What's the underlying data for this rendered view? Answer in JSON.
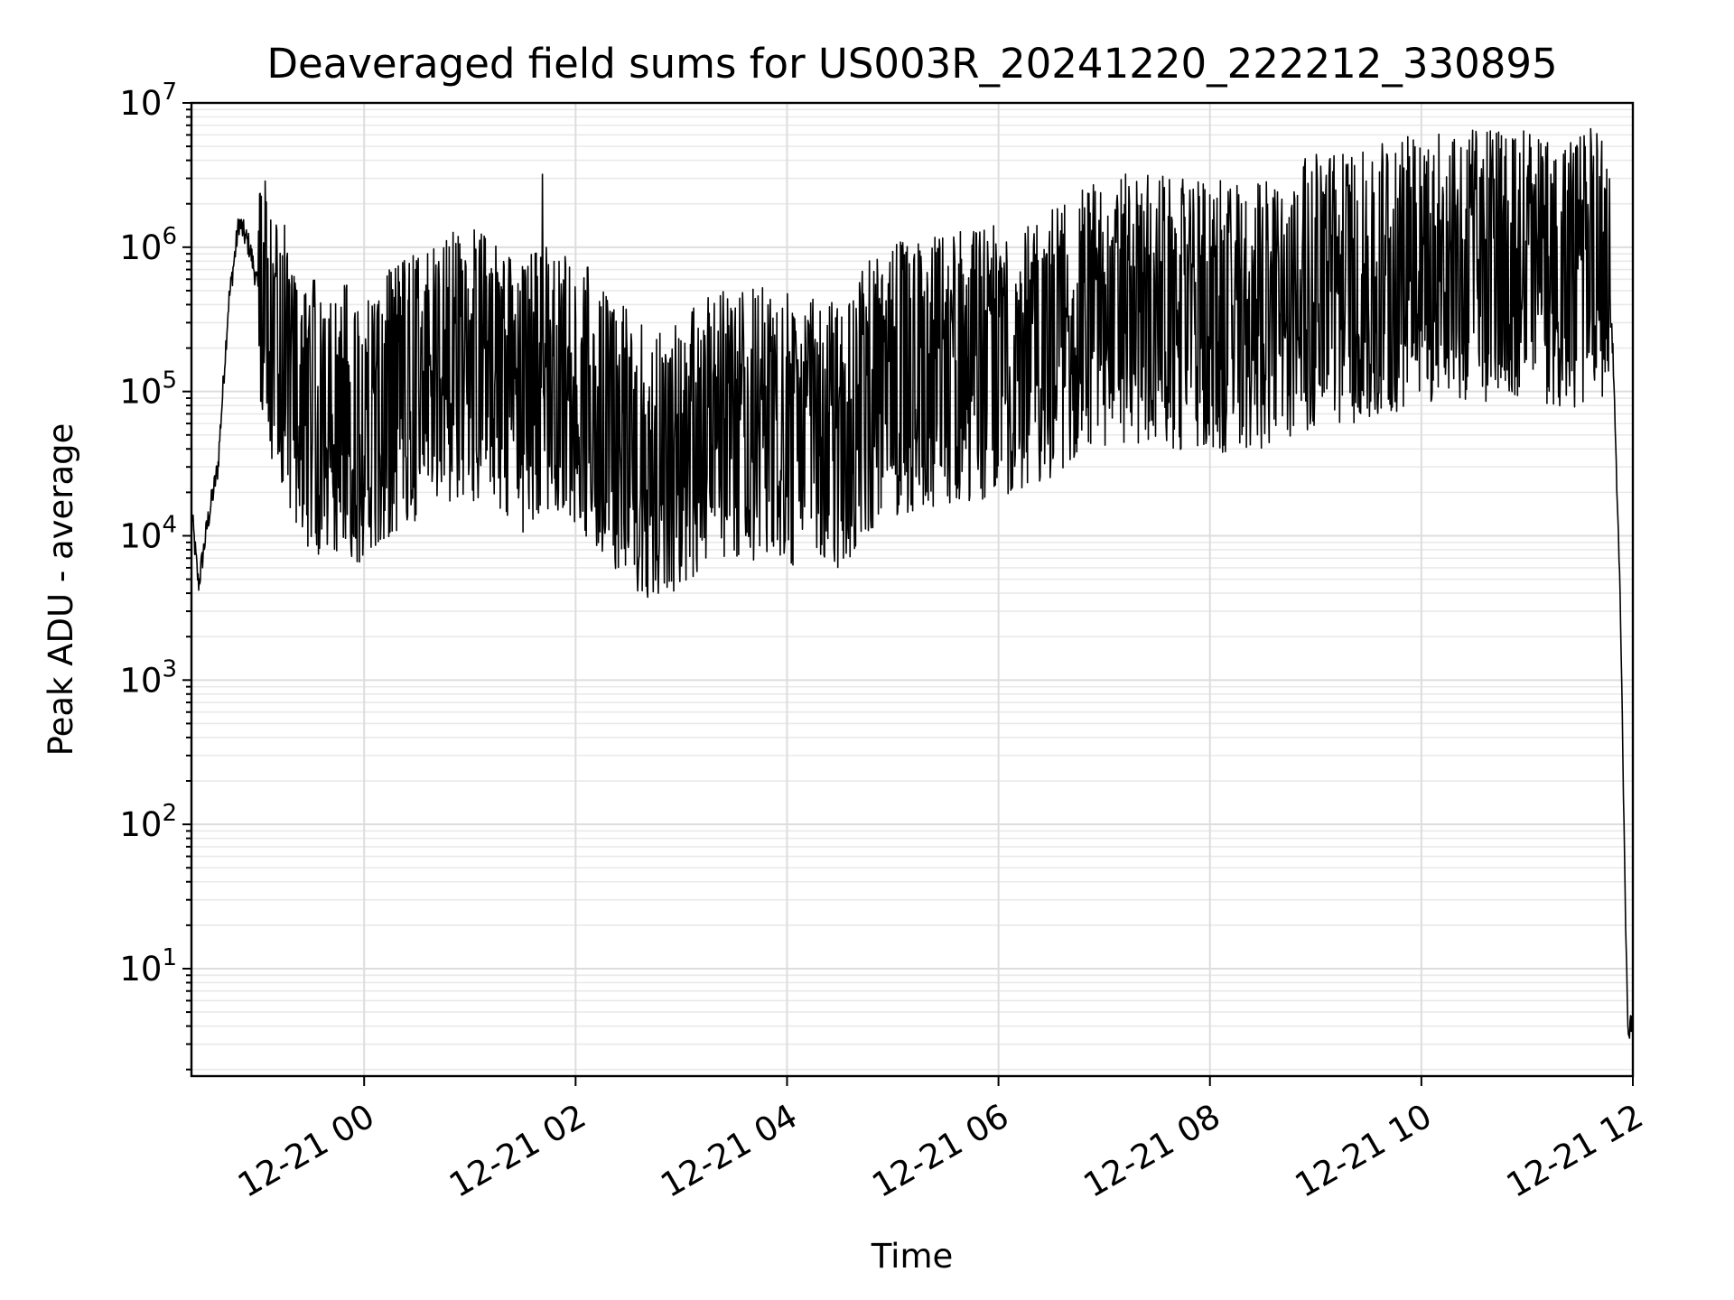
{
  "chart_data": {
    "type": "line",
    "title": "Deaveraged field sums for US003R_20241220_222212_330895",
    "xlabel": "Time",
    "ylabel": "Peak ADU - average",
    "x_axis": {
      "type": "datetime",
      "range": [
        "2024-12-20 22:22",
        "2024-12-21 12:00"
      ],
      "ticks": [
        "2024-12-21 00:00",
        "2024-12-21 02:00",
        "2024-12-21 04:00",
        "2024-12-21 06:00",
        "2024-12-21 08:00",
        "2024-12-21 10:00",
        "2024-12-21 12:00"
      ],
      "tick_labels": [
        "12-21 00",
        "12-21 02",
        "12-21 04",
        "12-21 06",
        "12-21 08",
        "12-21 10",
        "12-21 12"
      ],
      "tick_rotation_deg": 30
    },
    "y_axis": {
      "scale": "log",
      "range": [
        1.8,
        10000000
      ],
      "tick_values": [
        10,
        100,
        1000,
        10000,
        100000,
        1000000,
        10000000
      ],
      "tick_labels": [
        {
          "base": "10",
          "exp": "1"
        },
        {
          "base": "10",
          "exp": "2"
        },
        {
          "base": "10",
          "exp": "3"
        },
        {
          "base": "10",
          "exp": "4"
        },
        {
          "base": "10",
          "exp": "5"
        },
        {
          "base": "10",
          "exp": "6"
        },
        {
          "base": "10",
          "exp": "7"
        }
      ]
    },
    "grid": "major and minor, light gray",
    "legend": "none",
    "series": [
      {
        "color": "#000000",
        "x": [
          "2024-12-20 22:22",
          "2024-12-20 22:26",
          "2024-12-20 22:31",
          "2024-12-20 22:37",
          "2024-12-20 22:43",
          "2024-12-20 22:49",
          "2024-12-20 22:55",
          "2024-12-20 23:00",
          "2024-12-20 23:05",
          "2024-12-20 23:10",
          "2024-12-20 23:16",
          "2024-12-20 23:22",
          "2024-12-20 23:30",
          "2024-12-20 23:40",
          "2024-12-20 23:50",
          "2024-12-21 00:00",
          "2024-12-21 00:15",
          "2024-12-21 00:30",
          "2024-12-21 00:45",
          "2024-12-21 01:00",
          "2024-12-21 01:15",
          "2024-12-21 01:30",
          "2024-12-21 01:41",
          "2024-12-21 01:50",
          "2024-12-21 02:00",
          "2024-12-21 02:15",
          "2024-12-21 02:30",
          "2024-12-21 02:45",
          "2024-12-21 03:00",
          "2024-12-21 03:15",
          "2024-12-21 03:30",
          "2024-12-21 03:45",
          "2024-12-21 04:00",
          "2024-12-21 04:15",
          "2024-12-21 04:30",
          "2024-12-21 04:45",
          "2024-12-21 05:00",
          "2024-12-21 05:30",
          "2024-12-21 06:00",
          "2024-12-21 06:30",
          "2024-12-21 07:00",
          "2024-12-21 07:30",
          "2024-12-21 08:00",
          "2024-12-21 08:30",
          "2024-12-21 09:00",
          "2024-12-21 09:30",
          "2024-12-21 10:00",
          "2024-12-21 10:30",
          "2024-12-21 11:00",
          "2024-12-21 11:15",
          "2024-12-21 11:30",
          "2024-12-21 11:40",
          "2024-12-21 11:46",
          "2024-12-21 11:49",
          "2024-12-21 11:51",
          "2024-12-21 11:53",
          "2024-12-21 11:55",
          "2024-12-21 11:57",
          "2024-12-21 12:00"
        ],
        "y": [
          15000,
          4500,
          12000,
          30000,
          400000,
          1500000,
          1000000,
          500000,
          300000,
          250000,
          150000,
          80000,
          70000,
          60000,
          65000,
          50000,
          90000,
          110000,
          140000,
          160000,
          130000,
          90000,
          130000,
          120000,
          100000,
          70000,
          40000,
          30000,
          35000,
          60000,
          55000,
          60000,
          55000,
          50000,
          50000,
          90000,
          120000,
          140000,
          160000,
          220000,
          350000,
          380000,
          320000,
          350000,
          500000,
          550000,
          700000,
          750000,
          800000,
          700000,
          650000,
          900000,
          700000,
          150000,
          20000,
          3000,
          100,
          4,
          4
        ],
        "peak_spikes": [
          {
            "x": "2024-12-21 01:41",
            "y": 3200000
          },
          {
            "x": "2024-12-21 11:30",
            "y": 5800000
          },
          {
            "x": "2024-12-21 10:40",
            "y": 4200000
          }
        ],
        "trough_dips": [
          {
            "x": "2024-12-20 22:26",
            "y": 4200
          },
          {
            "x": "2024-12-21 02:50",
            "y": 12000
          },
          {
            "x": "2024-12-21 03:10",
            "y": 17000
          }
        ]
      }
    ]
  }
}
